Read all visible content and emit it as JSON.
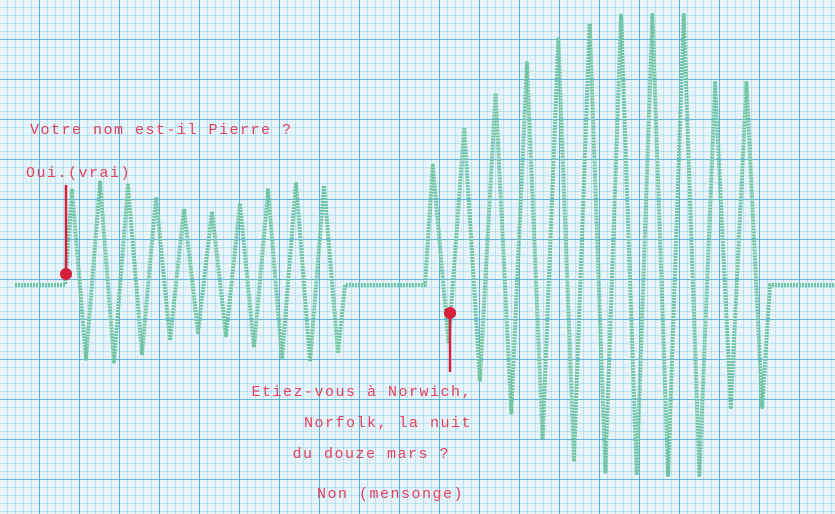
{
  "question_1": "Votre nom est-il Pierre ?",
  "answer_1": "Oui.(vrai)",
  "question_2": [
    "Etiez-vous à Norwich,",
    "Norfolk, la nuit",
    "du douze mars ?"
  ],
  "answer_2": "Non (mensonge)"
}
